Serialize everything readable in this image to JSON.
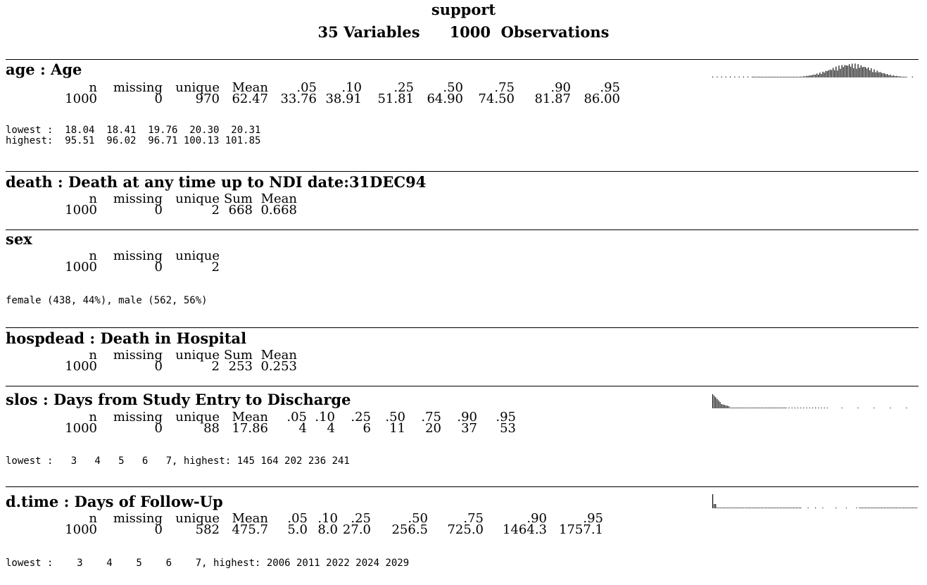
{
  "title": {
    "dataset": "support",
    "n_variables": "35 Variables",
    "n_observations": "1000  Observations"
  },
  "variables": [
    {
      "heading": "age : Age",
      "headers": [
        "n",
        "missing",
        "unique",
        "Mean",
        ".05",
        ".10",
        ".25",
        ".50",
        ".75",
        ".90",
        ".95"
      ],
      "values": [
        "1000",
        "0",
        "970",
        "62.47",
        "33.76",
        "38.91",
        "51.81",
        "64.90",
        "74.50",
        "81.87",
        "86.00"
      ],
      "extremes": [
        "lowest :  18.04  18.41  19.76  20.30  20.31",
        "highest:  95.51  96.02  96.71 100.13 101.85"
      ],
      "spark": {
        "shape": "bell-left-skewed"
      }
    },
    {
      "heading": "death : Death at any time up to NDI date:31DEC94",
      "headers": [
        "n",
        "missing",
        "unique",
        "Sum",
        "Mean"
      ],
      "values": [
        "1000",
        "0",
        "2",
        "668",
        "0.668"
      ]
    },
    {
      "heading": "sex",
      "headers": [
        "n",
        "missing",
        "unique"
      ],
      "values": [
        "1000",
        "0",
        "2"
      ],
      "extremes": [
        "female (438, 44%), male (562, 56%)"
      ]
    },
    {
      "heading": "hospdead : Death in Hospital",
      "headers": [
        "n",
        "missing",
        "unique",
        "Sum",
        "Mean"
      ],
      "values": [
        "1000",
        "0",
        "2",
        "253",
        "0.253"
      ]
    },
    {
      "heading": "slos : Days from Study Entry to Discharge",
      "headers": [
        "n",
        "missing",
        "unique",
        "Mean",
        ".05",
        ".10",
        ".25",
        ".50",
        ".75",
        ".90",
        ".95"
      ],
      "values": [
        "1000",
        "0",
        "88",
        "17.86",
        "4",
        "4",
        "6",
        "11",
        "20",
        "37",
        "53"
      ],
      "extremes": [
        "lowest :   3   4   5   6   7, highest: 145 164 202 236 241"
      ],
      "spark": {
        "shape": "right-skewed"
      }
    },
    {
      "heading": "d.time : Days of Follow-Up",
      "headers": [
        "n",
        "missing",
        "unique",
        "Mean",
        ".05",
        ".10",
        ".25",
        ".50",
        ".75",
        ".90",
        ".95"
      ],
      "values": [
        "1000",
        "0",
        "582",
        "475.7",
        "5.0",
        "8.0",
        "27.0",
        "256.5",
        "725.0",
        "1464.3",
        "1757.1"
      ],
      "extremes": [
        "lowest :    3    4    5    6    7, highest: 2006 2011 2022 2024 2029"
      ],
      "spark": {
        "shape": "spike-then-flat"
      }
    }
  ]
}
